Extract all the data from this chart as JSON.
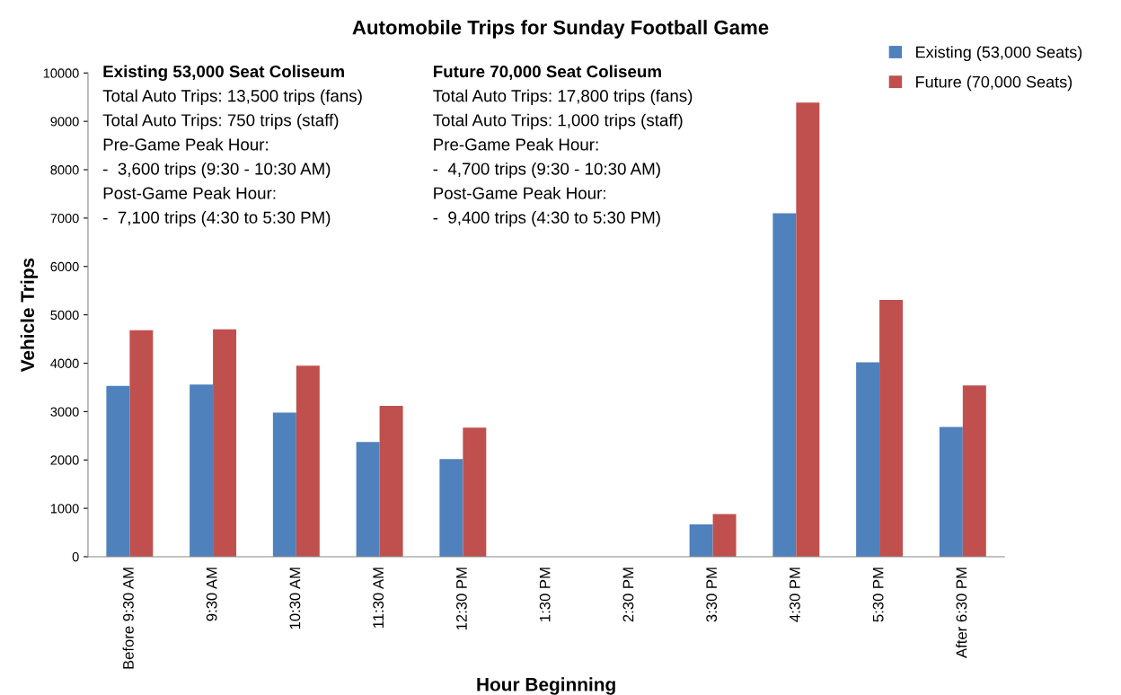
{
  "chart_data": {
    "type": "bar",
    "title": "Automobile Trips for Sunday Football Game",
    "xlabel": "Hour Beginning",
    "ylabel": "Vehicle Trips",
    "categories": [
      "Before 9:30 AM",
      "9:30 AM",
      "10:30 AM",
      "11:30 AM",
      "12:30 PM",
      "1:30 PM",
      "2:30 PM",
      "3:30 PM",
      "4:30 PM",
      "5:30 PM",
      "After 6:30 PM"
    ],
    "series": [
      {
        "name": "Existing (53,000 Seats)",
        "color": "#4f81bd",
        "values": [
          3530,
          3560,
          2980,
          2370,
          2020,
          0,
          0,
          670,
          7100,
          4020,
          2680
        ]
      },
      {
        "name": "Future (70,000 Seats)",
        "color": "#c0504d",
        "values": [
          4680,
          4700,
          3950,
          3120,
          2670,
          0,
          0,
          880,
          9390,
          5310,
          3540
        ]
      }
    ],
    "ylim": [
      0,
      10000
    ],
    "yticks": [
      0,
      1000,
      2000,
      3000,
      4000,
      5000,
      6000,
      7000,
      8000,
      9000,
      10000
    ],
    "grid": false,
    "legend": "top right",
    "annotations": [
      "Existing 53,000 Seat Coliseum",
      "Total Auto Trips: 13,500 trips (fans)",
      "Total Auto Trips: 750 trips (staff)",
      "Pre-Game Peak Hour:",
      "-  3,600 trips (9:30 - 10:30 AM)",
      "Post-Game Peak Hour:",
      "-  7,100 trips (4:30 to 5:30 PM)",
      "Future 70,000 Seat Coliseum",
      "Total Auto Trips: 17,800 trips (fans)",
      "Total Auto Trips: 1,000 trips (staff)",
      "Pre-Game Peak Hour:",
      "-  4,700 trips (9:30 - 10:30 AM)",
      "Post-Game Peak Hour:",
      "-  9,400 trips (4:30 to 5:30 PM)"
    ]
  }
}
